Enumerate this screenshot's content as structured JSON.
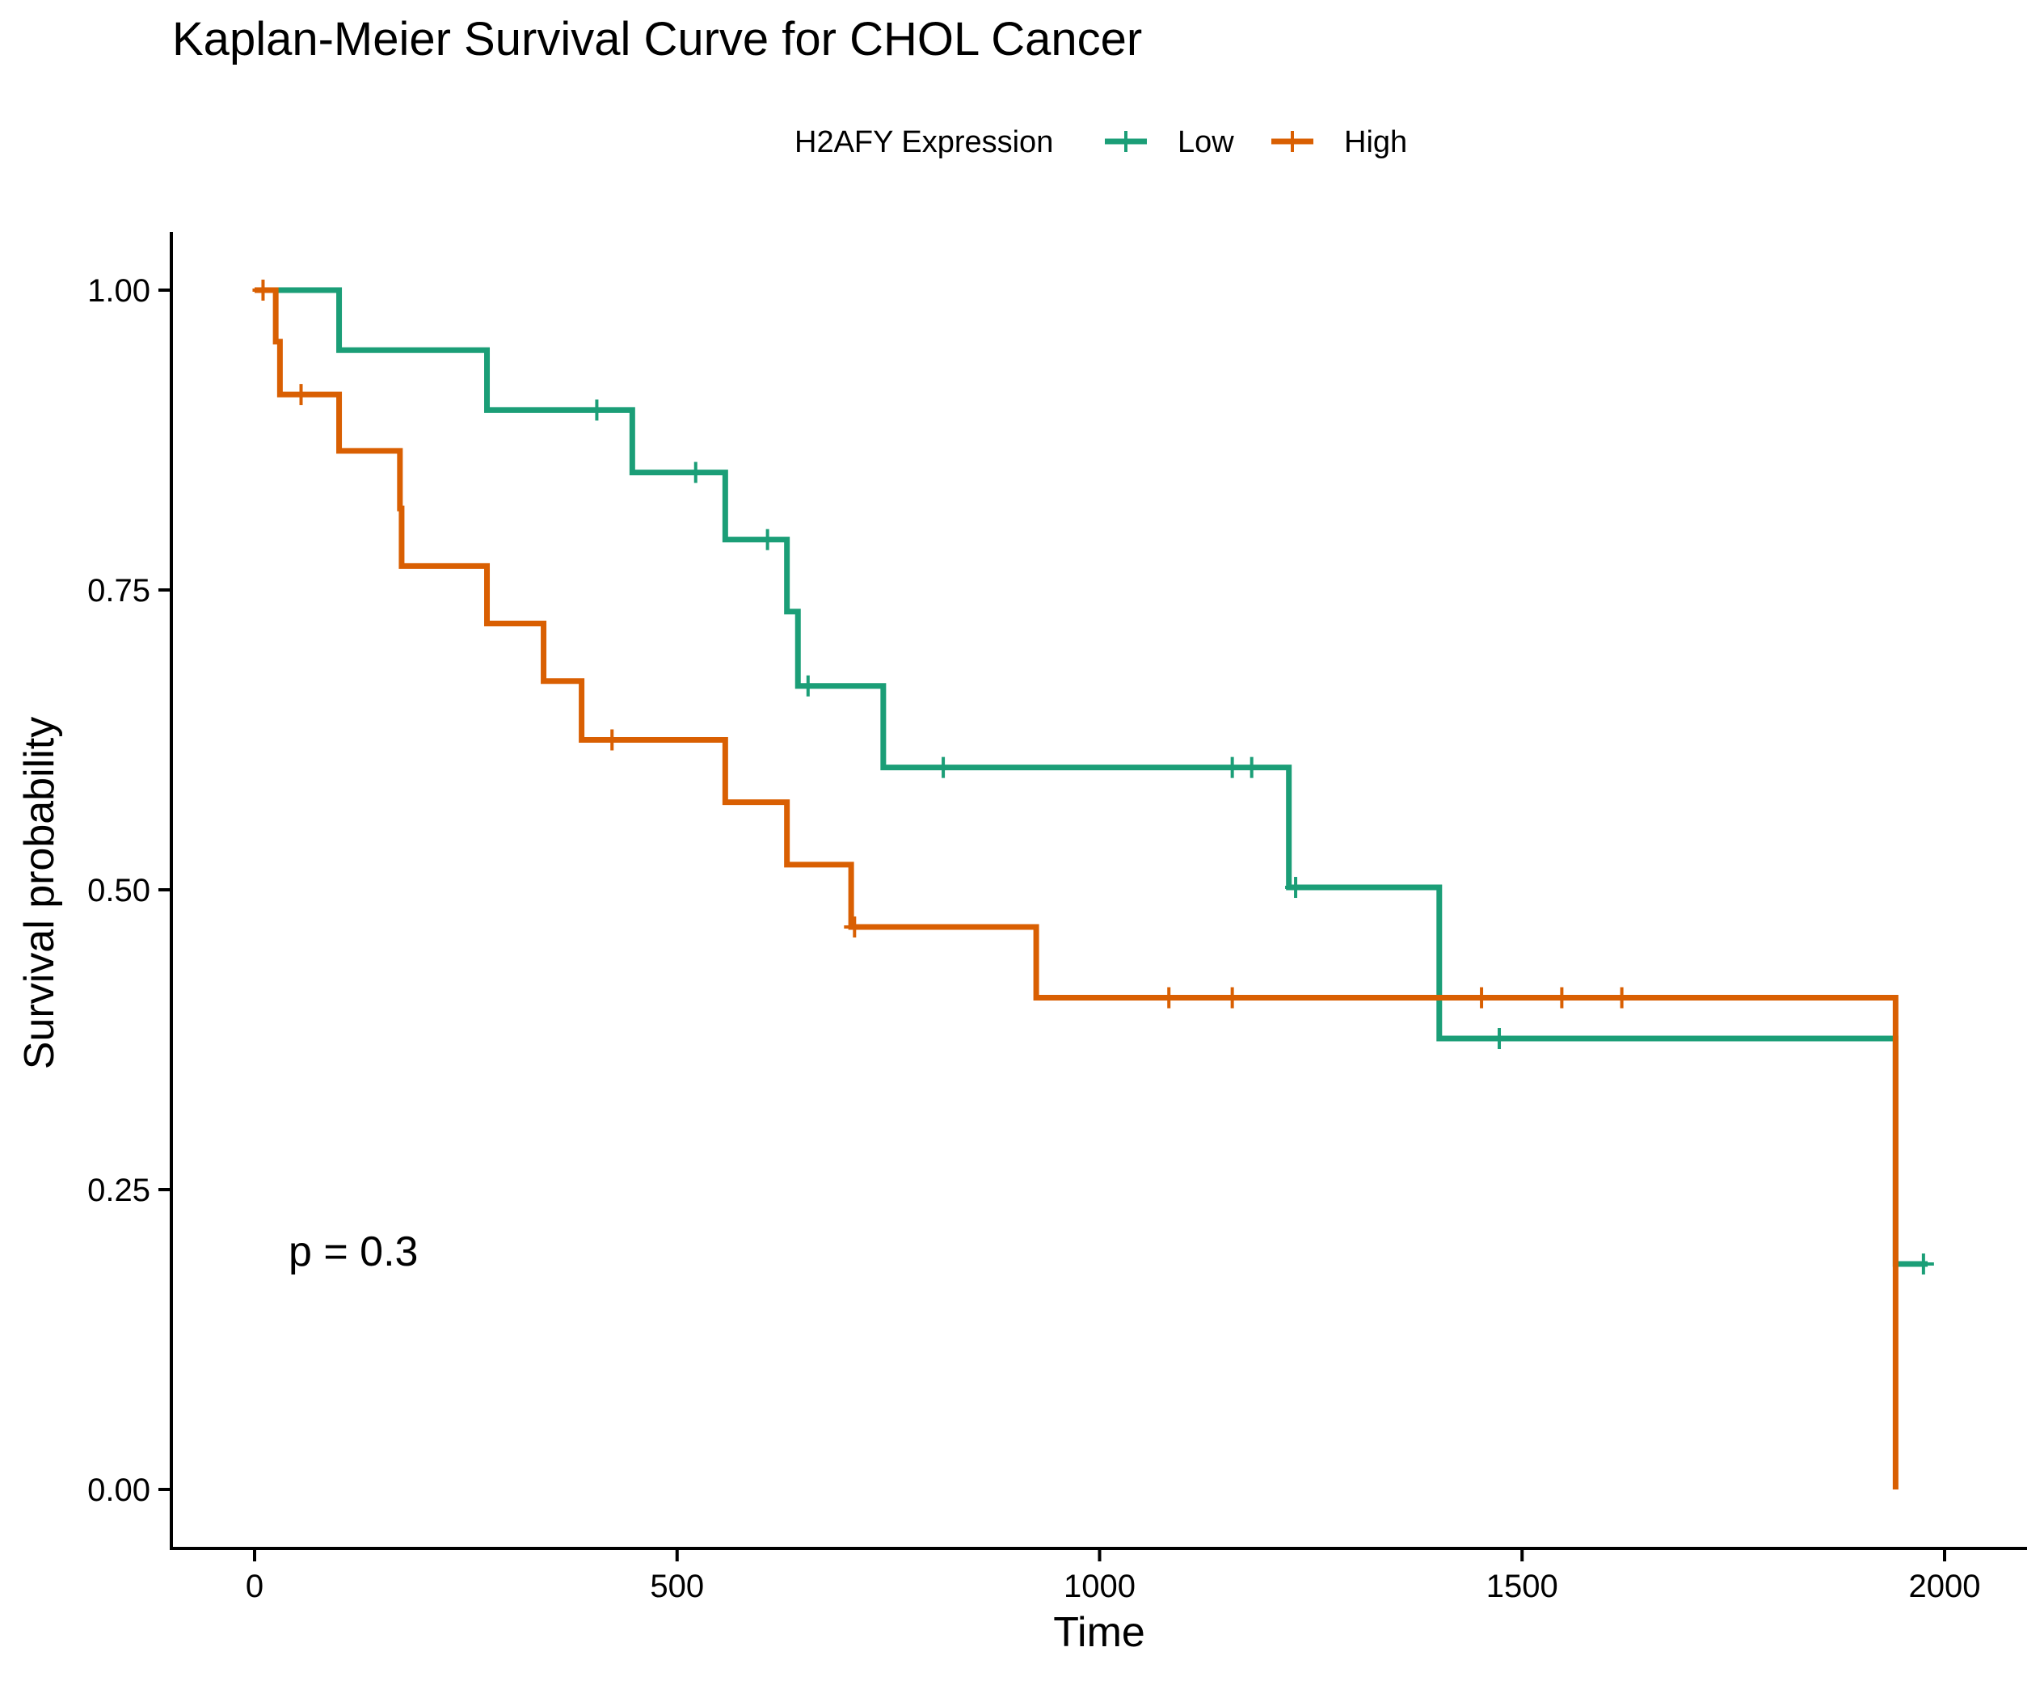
{
  "chart_data": {
    "type": "line",
    "subtype": "kaplan-meier-step",
    "title": "Kaplan-Meier Survival Curve for CHOL Cancer",
    "xlabel": "Time",
    "ylabel": "Survival probability",
    "xlim": [
      -100,
      2100
    ],
    "ylim": [
      -0.05,
      1.05
    ],
    "x_ticks": [
      0,
      500,
      1000,
      1500,
      2000
    ],
    "x_tick_labels": [
      "0",
      "500",
      "1000",
      "1500",
      "2000"
    ],
    "y_ticks": [
      0,
      0.25,
      0.5,
      0.75,
      1.0
    ],
    "y_tick_labels": [
      "0.00",
      "0.25",
      "0.50",
      "0.75",
      "1.00"
    ],
    "grid": false,
    "legend_title": "H2AFY Expression",
    "legend_position": "top",
    "annotation": "p = 0.3",
    "series": [
      {
        "name": "Low",
        "color": "#1B9E77",
        "steps": [
          [
            0,
            1.0
          ],
          [
            100,
            0.95
          ],
          [
            275,
            0.9
          ],
          [
            447,
            0.848
          ],
          [
            557,
            0.792
          ],
          [
            630,
            0.732
          ],
          [
            643,
            0.67
          ],
          [
            744,
            0.602
          ],
          [
            1224,
            0.502
          ],
          [
            1402,
            0.376
          ],
          [
            1942,
            0.188
          ],
          [
            1980,
            0.188
          ]
        ],
        "censored": [
          [
            405,
            0.9
          ],
          [
            522,
            0.848
          ],
          [
            607,
            0.792
          ],
          [
            655,
            0.67
          ],
          [
            815,
            0.602
          ],
          [
            1157,
            0.602
          ],
          [
            1180,
            0.602
          ],
          [
            1232,
            0.502
          ],
          [
            1473,
            0.376
          ],
          [
            1975,
            0.188
          ]
        ]
      },
      {
        "name": "High",
        "color": "#D95F02",
        "steps": [
          [
            0,
            1.0
          ],
          [
            25,
            0.957
          ],
          [
            30,
            0.913
          ],
          [
            100,
            0.866
          ],
          [
            172,
            0.818
          ],
          [
            174,
            0.77
          ],
          [
            275,
            0.722
          ],
          [
            342,
            0.674
          ],
          [
            387,
            0.625
          ],
          [
            557,
            0.573
          ],
          [
            630,
            0.521
          ],
          [
            706,
            0.469
          ],
          [
            925,
            0.41
          ],
          [
            1942,
            0.0
          ]
        ],
        "censored": [
          [
            10,
            1.0
          ],
          [
            55,
            0.913
          ],
          [
            423,
            0.625
          ],
          [
            710,
            0.469
          ],
          [
            1082,
            0.41
          ],
          [
            1157,
            0.41
          ],
          [
            1452,
            0.41
          ],
          [
            1547,
            0.41
          ],
          [
            1618,
            0.41
          ]
        ]
      }
    ]
  }
}
